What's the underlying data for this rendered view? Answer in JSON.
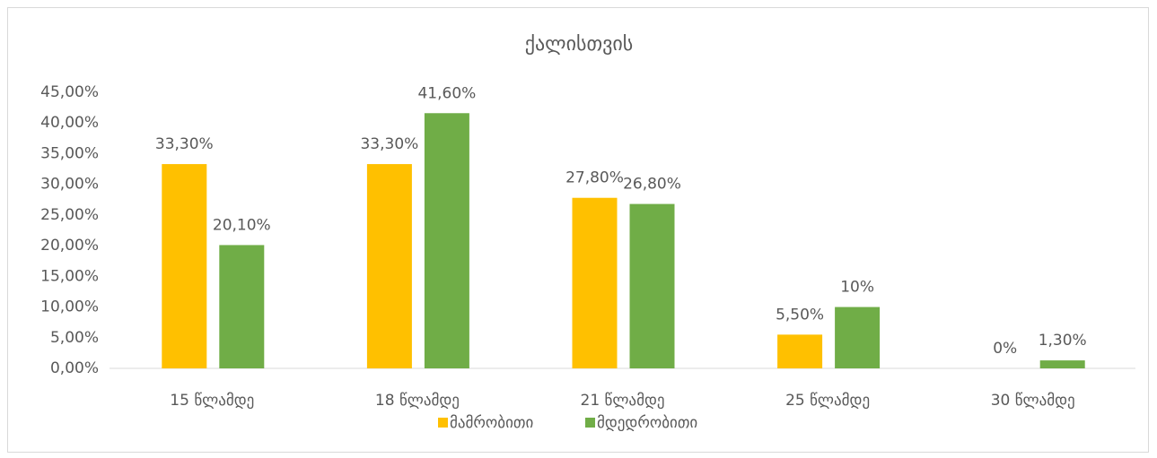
{
  "chart_data": {
    "type": "bar",
    "title": "ქალისთვის",
    "categories": [
      "15 წლამდე",
      "18 წლამდე",
      "21 წლამდე",
      "25 წლამდე",
      "30 წლამდე"
    ],
    "series": [
      {
        "name": "მამრობითი",
        "color": "#ffc000",
        "values": [
          33.3,
          33.3,
          27.8,
          5.5,
          0
        ],
        "value_labels": [
          "33,30%",
          "33,30%",
          "27,80%",
          "5,50%",
          "0%"
        ]
      },
      {
        "name": "მდედრობითი",
        "color": "#70ad47",
        "values": [
          20.1,
          41.6,
          26.8,
          10,
          1.3
        ],
        "value_labels": [
          "20,10%",
          "41,60%",
          "26,80%",
          "10%",
          "1,30%"
        ]
      }
    ],
    "ylim": [
      0,
      45
    ],
    "yticks": [
      {
        "value": 0,
        "label": "0,00%"
      },
      {
        "value": 5,
        "label": "5,00%"
      },
      {
        "value": 10,
        "label": "10,00%"
      },
      {
        "value": 15,
        "label": "15,00%"
      },
      {
        "value": 20,
        "label": "20,00%"
      },
      {
        "value": 25,
        "label": "25,00%"
      },
      {
        "value": 30,
        "label": "30,00%"
      },
      {
        "value": 35,
        "label": "35,00%"
      },
      {
        "value": 40,
        "label": "40,00%"
      },
      {
        "value": 45,
        "label": "45,00%"
      }
    ],
    "grid": false,
    "legend": "bottom"
  }
}
